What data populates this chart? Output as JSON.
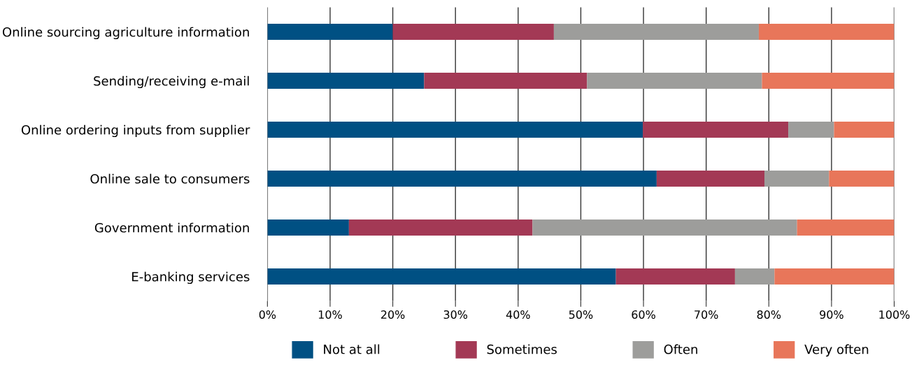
{
  "chart_data": {
    "type": "bar",
    "orientation": "horizontal",
    "stacked": true,
    "categories": [
      "Online sourcing agriculture information",
      "Sending/receiving e-mail",
      "Online ordering inputs from supplier",
      "Online sale to consumers",
      "Government information",
      "E-banking services"
    ],
    "series": [
      {
        "name": "Not at all",
        "color": "#005083",
        "values": [
          20,
          25,
          59.9,
          62.1,
          13,
          55.6
        ]
      },
      {
        "name": "Sometimes",
        "color": "#a33955",
        "values": [
          25.7,
          26,
          23.2,
          17.2,
          29.3,
          19
        ]
      },
      {
        "name": "Often",
        "color": "#9d9d9b",
        "values": [
          32.7,
          27.9,
          7.3,
          10.3,
          42.2,
          6.3
        ]
      },
      {
        "name": "Very often",
        "color": "#e8765a",
        "values": [
          21.6,
          21.1,
          9.6,
          10.4,
          15.5,
          19.1
        ]
      }
    ],
    "xlim": [
      0,
      100
    ],
    "xticks": [
      {
        "value": 0,
        "label": "0%"
      },
      {
        "value": 10,
        "label": "10%"
      },
      {
        "value": 20,
        "label": "20%"
      },
      {
        "value": 30,
        "label": "30%"
      },
      {
        "value": 40,
        "label": "40%"
      },
      {
        "value": 50,
        "label": "50%"
      },
      {
        "value": 60,
        "label": "60%"
      },
      {
        "value": 70,
        "label": "70%"
      },
      {
        "value": 80,
        "label": "80%"
      },
      {
        "value": 90,
        "label": "90%"
      },
      {
        "value": 100,
        "label": "100%"
      }
    ],
    "grid": "x",
    "legend": "bottom"
  }
}
